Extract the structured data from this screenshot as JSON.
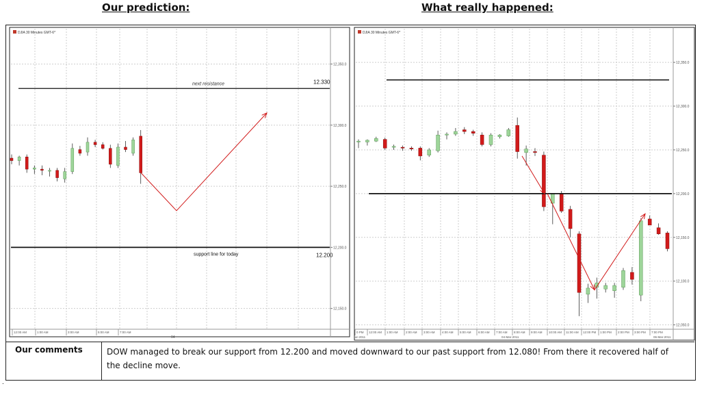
{
  "header": {
    "left_title": "Our prediction:",
    "right_title": "What really happened:"
  },
  "comments": {
    "label": "Our comments",
    "text": "DOW managed to break our support from 12.200 and moved downward to our past support from 12.080! From there it recovered half of the decline move."
  },
  "chart_data": [
    {
      "type": "candlestick",
      "panel": "prediction",
      "legend": "DJIA 30 Minutes GMT-6*",
      "ylim": [
        12133,
        12380
      ],
      "y_ticks": [
        "12,350.0",
        "12,300.0",
        "12,250.0",
        "12,200.0",
        "12,150.0"
      ],
      "x_ticks": [
        "12:00 AM",
        "1:00 AM",
        "3:00 AM",
        "5:00 AM",
        "7:00 AM"
      ],
      "x_date": "04",
      "candles": [
        {
          "o": 12273,
          "h": 12276,
          "l": 12268,
          "c": 12271
        },
        {
          "o": 12271,
          "h": 12275,
          "l": 12267,
          "c": 12274
        },
        {
          "o": 12274,
          "h": 12276,
          "l": 12261,
          "c": 12264
        },
        {
          "o": 12264,
          "h": 12267,
          "l": 12260,
          "c": 12265
        },
        {
          "o": 12264,
          "h": 12267,
          "l": 12259,
          "c": 12263
        },
        {
          "o": 12263,
          "h": 12265,
          "l": 12258,
          "c": 12263
        },
        {
          "o": 12263,
          "h": 12265,
          "l": 12254,
          "c": 12257
        },
        {
          "o": 12256,
          "h": 12265,
          "l": 12253,
          "c": 12262
        },
        {
          "o": 12262,
          "h": 12285,
          "l": 12260,
          "c": 12281
        },
        {
          "o": 12280,
          "h": 12283,
          "l": 12275,
          "c": 12277
        },
        {
          "o": 12278,
          "h": 12290,
          "l": 12275,
          "c": 12286
        },
        {
          "o": 12286,
          "h": 12288,
          "l": 12282,
          "c": 12284
        },
        {
          "o": 12284,
          "h": 12286,
          "l": 12280,
          "c": 12281
        },
        {
          "o": 12281,
          "h": 12284,
          "l": 12265,
          "c": 12268
        },
        {
          "o": 12267,
          "h": 12285,
          "l": 12265,
          "c": 12282
        },
        {
          "o": 12282,
          "h": 12287,
          "l": 12278,
          "c": 12280
        },
        {
          "o": 12277,
          "h": 12290,
          "l": 12275,
          "c": 12288
        },
        {
          "o": 12291,
          "h": 12296,
          "l": 12252,
          "c": 12261
        }
      ],
      "levels": [
        {
          "label": "next resistance",
          "value": "12.330",
          "y": 12330
        },
        {
          "label": "support line for today",
          "value": "12.200",
          "y": 12200
        }
      ],
      "projection_path": [
        [
          12261
        ],
        [
          12230
        ],
        [
          12310
        ]
      ]
    },
    {
      "type": "candlestick",
      "panel": "actual",
      "legend": "DJIA 30 Minutes GMT-6*",
      "ylim": [
        12045,
        12390
      ],
      "y_ticks": [
        "12,350.0",
        "12,300.0",
        "12,250.0",
        "12,200.0",
        "12,150.0",
        "12,100.0",
        "12,050.0"
      ],
      "x_ticks": [
        "0 PM",
        "12:00 AM",
        "1:00 AM",
        "2:00 AM",
        "3:00 AM",
        "4:00 AM",
        "5:00 AM",
        "6:00 AM",
        "7:00 AM",
        "8:00 AM",
        "9:00 AM",
        "10:00 AM",
        "11:00 AM",
        "12:00 PM",
        "1:00 PM",
        "2:00 PM",
        "3:00 PM",
        "7:00 PM"
      ],
      "x_dates": [
        "ar-2011",
        "04-Mar-2011",
        "06-Mar-2011"
      ],
      "candles": [
        {
          "o": 12259,
          "h": 12262,
          "l": 12252,
          "c": 12260
        },
        {
          "o": 12259,
          "h": 12262,
          "l": 12255,
          "c": 12261
        },
        {
          "o": 12260,
          "h": 12265,
          "l": 12259,
          "c": 12263
        },
        {
          "o": 12262,
          "h": 12264,
          "l": 12250,
          "c": 12252
        },
        {
          "o": 12253,
          "h": 12256,
          "l": 12250,
          "c": 12254
        },
        {
          "o": 12253,
          "h": 12255,
          "l": 12249,
          "c": 12252
        },
        {
          "o": 12252,
          "h": 12254,
          "l": 12249,
          "c": 12251
        },
        {
          "o": 12252,
          "h": 12254,
          "l": 12238,
          "c": 12243
        },
        {
          "o": 12244,
          "h": 12252,
          "l": 12242,
          "c": 12250
        },
        {
          "o": 12249,
          "h": 12272,
          "l": 12247,
          "c": 12267
        },
        {
          "o": 12267,
          "h": 12270,
          "l": 12262,
          "c": 12268
        },
        {
          "o": 12268,
          "h": 12275,
          "l": 12266,
          "c": 12271
        },
        {
          "o": 12273,
          "h": 12276,
          "l": 12268,
          "c": 12271
        },
        {
          "o": 12271,
          "h": 12273,
          "l": 12266,
          "c": 12269
        },
        {
          "o": 12267,
          "h": 12270,
          "l": 12254,
          "c": 12256
        },
        {
          "o": 12256,
          "h": 12269,
          "l": 12254,
          "c": 12267
        },
        {
          "o": 12265,
          "h": 12268,
          "l": 12263,
          "c": 12267
        },
        {
          "o": 12266,
          "h": 12275,
          "l": 12265,
          "c": 12273
        },
        {
          "o": 12278,
          "h": 12287,
          "l": 12240,
          "c": 12248
        },
        {
          "o": 12247,
          "h": 12255,
          "l": 12232,
          "c": 12251
        },
        {
          "o": 12248,
          "h": 12252,
          "l": 12243,
          "c": 12247
        },
        {
          "o": 12244,
          "h": 12248,
          "l": 12180,
          "c": 12185
        },
        {
          "o": 12189,
          "h": 12200,
          "l": 12165,
          "c": 12200
        },
        {
          "o": 12200,
          "h": 12203,
          "l": 12178,
          "c": 12180
        },
        {
          "o": 12182,
          "h": 12186,
          "l": 12150,
          "c": 12160
        },
        {
          "o": 12154,
          "h": 12157,
          "l": 12060,
          "c": 12087
        },
        {
          "o": 12085,
          "h": 12097,
          "l": 12075,
          "c": 12092
        },
        {
          "o": 12093,
          "h": 12104,
          "l": 12080,
          "c": 12098
        },
        {
          "o": 12091,
          "h": 12098,
          "l": 12087,
          "c": 12095
        },
        {
          "o": 12089,
          "h": 12098,
          "l": 12081,
          "c": 12095
        },
        {
          "o": 12093,
          "h": 12115,
          "l": 12090,
          "c": 12112
        },
        {
          "o": 12110,
          "h": 12116,
          "l": 12096,
          "c": 12102
        },
        {
          "o": 12084,
          "h": 12172,
          "l": 12077,
          "c": 12169
        },
        {
          "o": 12171,
          "h": 12175,
          "l": 12165,
          "c": 12164
        },
        {
          "o": 12161,
          "h": 12166,
          "l": 12153,
          "c": 12154
        },
        {
          "o": 12155,
          "h": 12157,
          "l": 12134,
          "c": 12137
        }
      ],
      "levels": [
        {
          "y": 12330
        },
        {
          "y": 12200
        }
      ],
      "arrows": [
        [
          12243,
          12200
        ],
        [
          12200,
          12090,
          12177
        ]
      ]
    }
  ],
  "colors": {
    "bull": "#9ed59a",
    "bear": "#d11a1a",
    "arrow": "#d11a1a",
    "grid": "#cdcdcd",
    "axis_text": "#555555",
    "level_line": "#111111"
  }
}
